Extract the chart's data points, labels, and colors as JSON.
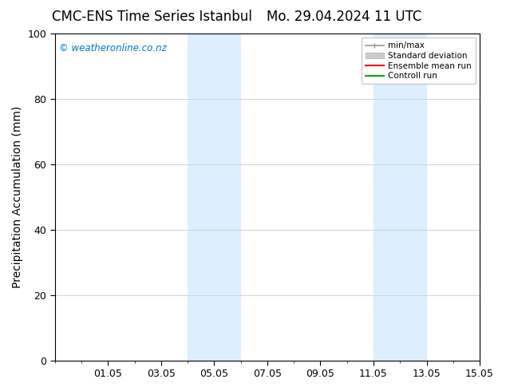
{
  "title_left": "CMC-ENS Time Series Istanbul",
  "title_right": "Mo. 29.04.2024 11 UTC",
  "ylabel": "Precipitation Accumulation (mm)",
  "watermark": "© weatheronline.co.nz",
  "watermark_color": "#0077cc",
  "ylim": [
    0,
    100
  ],
  "xlim": [
    0,
    16
  ],
  "xtick_labels": [
    "01.05",
    "03.05",
    "05.05",
    "07.05",
    "09.05",
    "11.05",
    "13.05",
    "15.05"
  ],
  "xtick_positions": [
    2,
    4,
    6,
    8,
    10,
    12,
    14,
    16
  ],
  "shade_bands": [
    {
      "x_start": 5.0,
      "x_end": 6.0
    },
    {
      "x_start": 6.0,
      "x_end": 7.0
    },
    {
      "x_start": 12.0,
      "x_end": 13.0
    },
    {
      "x_start": 13.0,
      "x_end": 14.0
    }
  ],
  "shade_color": "#ddeeff",
  "shade_alpha": 1.0,
  "legend_labels": [
    "min/max",
    "Standard deviation",
    "Ensemble mean run",
    "Controll run"
  ],
  "legend_colors": [
    "#999999",
    "#cccccc",
    "#ff0000",
    "#00aa00"
  ],
  "background_color": "#ffffff",
  "yticks": [
    0,
    20,
    40,
    60,
    80,
    100
  ],
  "title_fontsize": 12,
  "label_fontsize": 10,
  "tick_fontsize": 9
}
